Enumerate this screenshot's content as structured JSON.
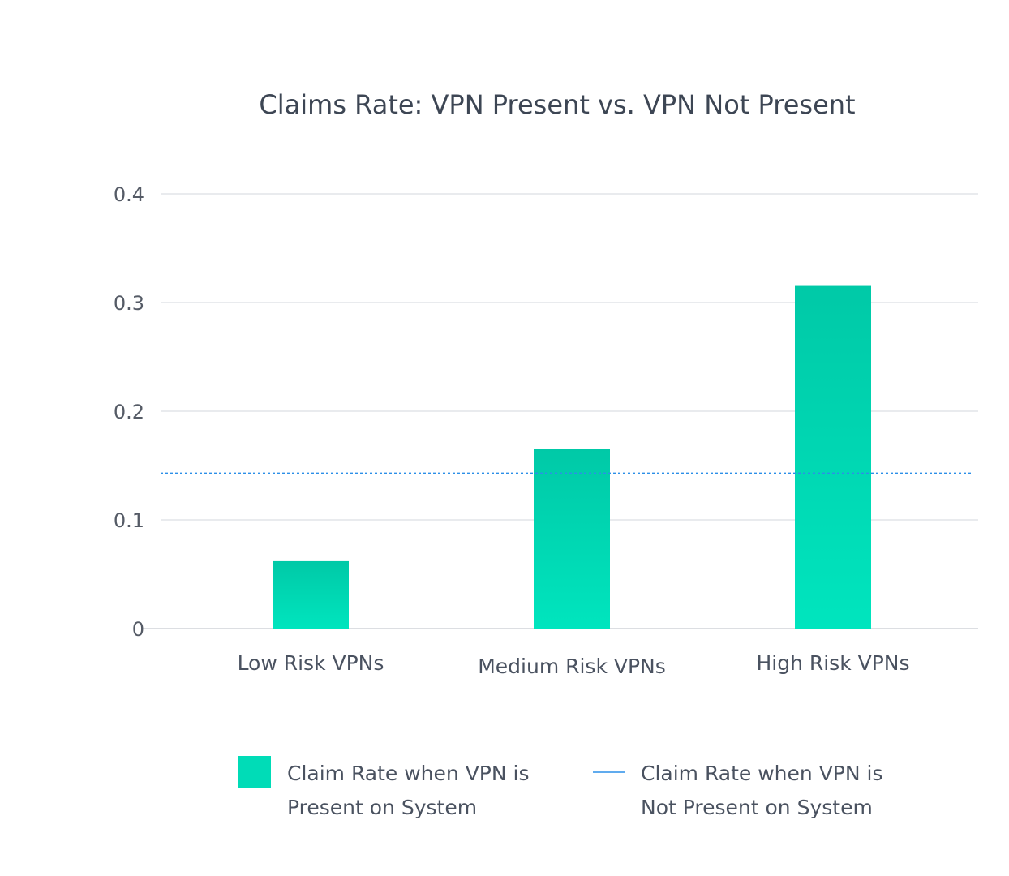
{
  "chart_data": {
    "type": "bar",
    "title": "Claims Rate: VPN Present vs. VPN Not Present",
    "categories": [
      "Low Risk VPNs",
      "Medium Risk VPNs",
      "High Risk VPNs"
    ],
    "series": [
      {
        "name": "Claim Rate when VPN is Present on System",
        "values": [
          0.062,
          0.165,
          0.316
        ],
        "color": "#00d9b2"
      }
    ],
    "reference_line": {
      "name": "Claim Rate when VPN is Not Present on System",
      "value": 0.143,
      "color": "#2b8fe8",
      "style": "dotted"
    },
    "yticks": [
      "0",
      "0.1",
      "0.2",
      "0.3",
      "0.4"
    ],
    "ylim": [
      0,
      0.4
    ],
    "xlabel": "",
    "ylabel": "",
    "grid": true,
    "legend_position": "bottom",
    "legend": [
      {
        "lines": [
          "Claim Rate when VPN is",
          "Present on System"
        ],
        "kind": "bar"
      },
      {
        "lines": [
          "Claim Rate when VPN is",
          "Not Present on System"
        ],
        "kind": "line"
      }
    ]
  }
}
